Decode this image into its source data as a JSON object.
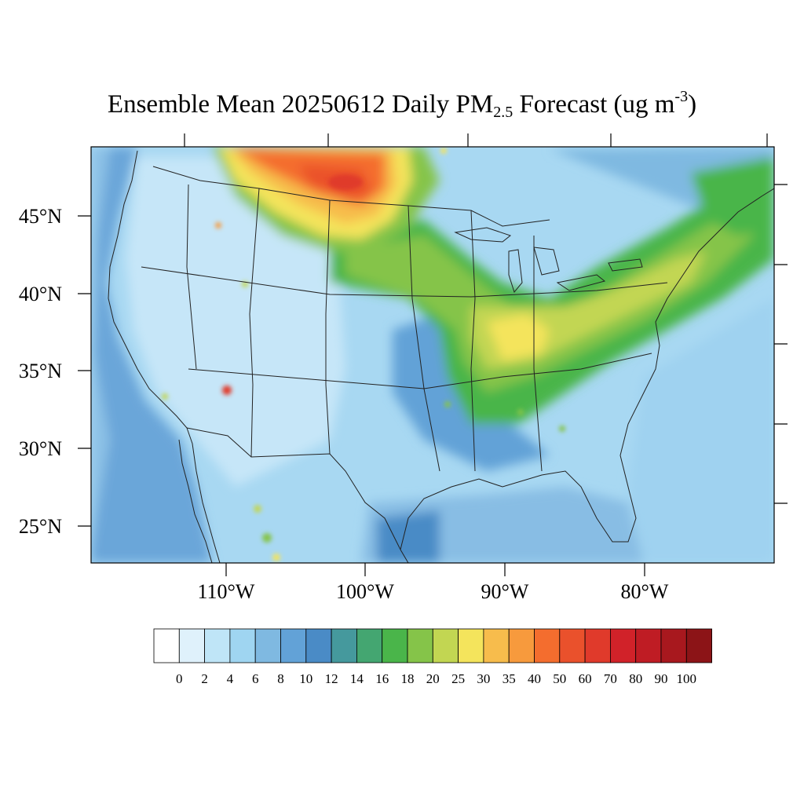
{
  "title": {
    "prefix": "Ensemble Mean 20250612 Daily PM",
    "subscript": "2.5",
    "middle": " Forecast (ug m",
    "superscript": "-3",
    "suffix": ")"
  },
  "axes": {
    "lat_labels": [
      "45°N",
      "40°N",
      "35°N",
      "30°N",
      "25°N"
    ],
    "lon_labels": [
      "110°W",
      "100°W",
      "90°W",
      "80°W"
    ]
  },
  "colorbar": {
    "colors": [
      "#ffffff",
      "#dff1fb",
      "#bfe5f7",
      "#9fd5f1",
      "#7fb9e1",
      "#62a2d7",
      "#4a8bc6",
      "#45999d",
      "#44a671",
      "#4ab54a",
      "#85c449",
      "#c2d652",
      "#f4e45c",
      "#f7bc4c",
      "#f79a3d",
      "#f46d2e",
      "#ea512c",
      "#e03a2b",
      "#d12229",
      "#bf1c24",
      "#a8181e",
      "#8c1417"
    ],
    "labels": [
      "0",
      "2",
      "4",
      "6",
      "8",
      "10",
      "12",
      "14",
      "16",
      "18",
      "20",
      "25",
      "30",
      "35",
      "40",
      "50",
      "60",
      "70",
      "80",
      "90",
      "100"
    ]
  },
  "map_colors": {
    "ocean_pacific": "#6aa6d9",
    "ocean_pacific_near": "#88bde4",
    "ocean_atlantic": "#9fd2f0",
    "land_west": "#c6e6f8",
    "land_central": "#a8d8f2",
    "lines": "#222222"
  }
}
